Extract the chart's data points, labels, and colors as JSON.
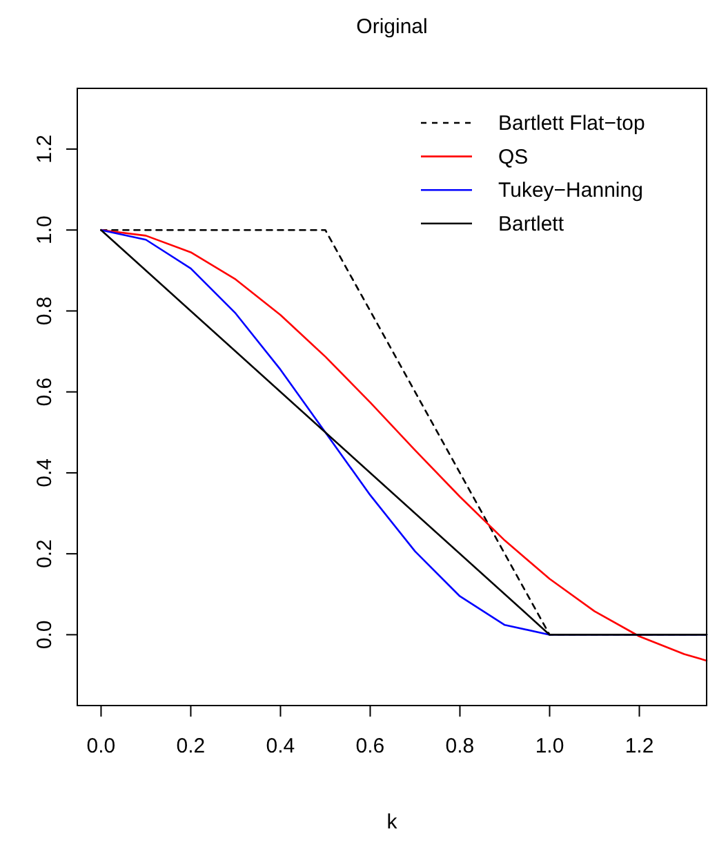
{
  "chart_data": {
    "type": "line",
    "title": "Original",
    "xlabel": "k",
    "xlim": [
      -0.053,
      1.35
    ],
    "ylim": [
      -0.175,
      1.35
    ],
    "xticks": [
      {
        "value": 0,
        "label": "0.0"
      },
      0.2,
      0.4,
      0.6,
      0.8,
      {
        "value": 1,
        "label": "1.0"
      },
      1.2
    ],
    "yticks": [
      {
        "value": 0,
        "label": "0.0"
      },
      0.2,
      0.4,
      0.6,
      0.8,
      {
        "value": 1,
        "label": "1.0"
      },
      1.2
    ],
    "grid": false,
    "legend": "top right",
    "marker": "none",
    "series": [
      {
        "name": "Bartlett Flat−top",
        "color": "#000000",
        "line_style": "dashed",
        "x": [
          0,
          0.5,
          1,
          1.35
        ],
        "values": [
          1,
          1,
          0,
          0
        ]
      },
      {
        "name": "QS",
        "color": "#ff0000",
        "line_style": "solid",
        "x": [
          0,
          0.1,
          0.2,
          0.3,
          0.4,
          0.5,
          0.6,
          0.7,
          0.8,
          0.9,
          1.0,
          1.1,
          1.2,
          1.3,
          1.35
        ],
        "values": [
          1,
          0.986,
          0.945,
          0.878,
          0.79,
          0.687,
          0.574,
          0.456,
          0.341,
          0.233,
          0.138,
          0.058,
          -0.004,
          -0.048,
          -0.064
        ]
      },
      {
        "name": "Tukey−Hanning",
        "color": "#0000ff",
        "line_style": "solid",
        "x": [
          0,
          0.1,
          0.2,
          0.3,
          0.4,
          0.5,
          0.6,
          0.7,
          0.8,
          0.9,
          1.0,
          1.35
        ],
        "values": [
          1,
          0.976,
          0.905,
          0.794,
          0.655,
          0.5,
          0.345,
          0.206,
          0.095,
          0.024,
          0,
          0
        ]
      },
      {
        "name": "Bartlett",
        "color": "#000000",
        "line_style": "solid",
        "x": [
          0,
          1,
          1.35
        ],
        "values": [
          1,
          0,
          0
        ]
      }
    ]
  }
}
